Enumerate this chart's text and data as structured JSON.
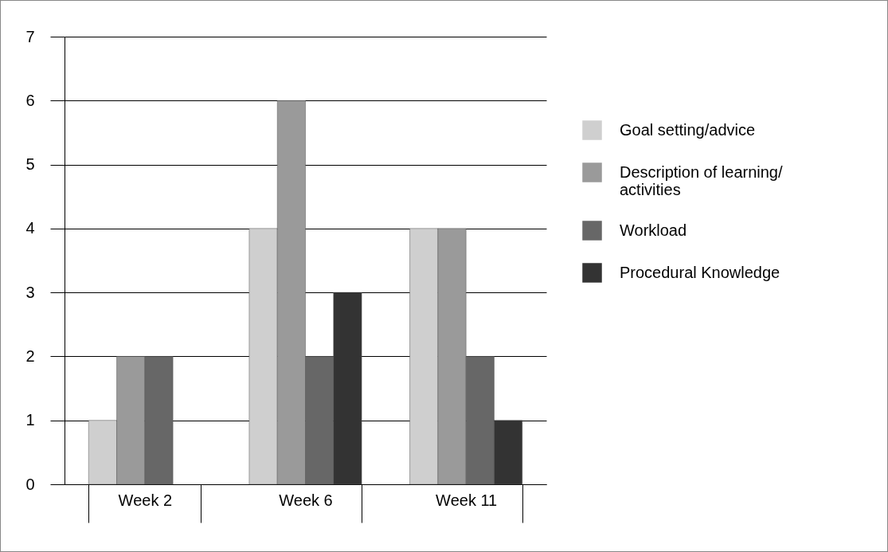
{
  "chart_data": {
    "type": "bar",
    "categories": [
      "Week 2",
      "Week 6",
      "Week 11"
    ],
    "series": [
      {
        "name": "Goal setting/advice",
        "color": "#cfcfcf",
        "values": [
          1,
          4,
          4
        ]
      },
      {
        "name": "Description of learning/activities",
        "color": "#9a9a9a",
        "values": [
          2,
          6,
          4
        ]
      },
      {
        "name": "Workload",
        "color": "#676767",
        "values": [
          2,
          2,
          2
        ]
      },
      {
        "name": "Procedural Knowledge",
        "color": "#333333",
        "values": [
          null,
          3,
          1
        ]
      }
    ],
    "ylim": [
      0,
      7
    ],
    "yticks": [
      0,
      1,
      2,
      3,
      4,
      5,
      6,
      7
    ],
    "grid": "y",
    "legend": "right"
  }
}
